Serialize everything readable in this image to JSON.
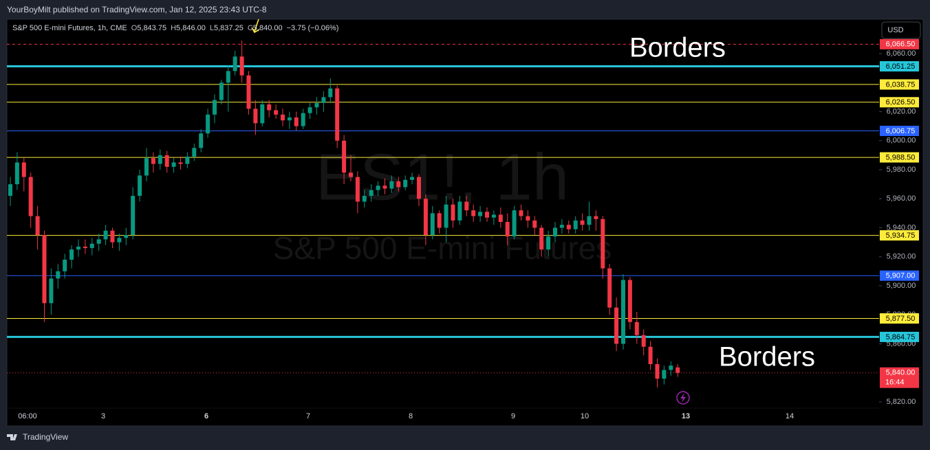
{
  "header": {
    "byline": "YourBoyMilt published on TradingView.com, Jan 12, 2025 23:43 UTC-8",
    "symbol": "S&P 500 E-mini Futures, 1h, CME",
    "ohlc": [
      {
        "key": "O",
        "value": "5,843.75"
      },
      {
        "key": "H",
        "value": "5,846.00"
      },
      {
        "key": "L",
        "value": "5,837.25"
      },
      {
        "key": "C",
        "value": "5,840.00"
      }
    ],
    "change": "−3.75 (−0.06%)",
    "currency": "USD"
  },
  "footer": {
    "brand": "TradingView"
  },
  "chart_data": {
    "type": "candlestick",
    "watermark": [
      "ES1!, 1h",
      "S&P 500 E-mini Futures"
    ],
    "annotations": [
      "Borders",
      "Borders"
    ],
    "up_color": "#089981",
    "down_color": "#f23645",
    "ylim": [
      5803.4,
      6083.7
    ],
    "yticks": [
      {
        "value": 5820,
        "label": "5,820.00"
      },
      {
        "value": 5860,
        "label": "5,860.00"
      },
      {
        "value": 5880,
        "label": "5,880.00"
      },
      {
        "value": 5900,
        "label": "5,900.00"
      },
      {
        "value": 5920,
        "label": "5,920.00"
      },
      {
        "value": 5940,
        "label": "5,940.00"
      },
      {
        "value": 5960,
        "label": "5,960.00"
      },
      {
        "value": 5980,
        "label": "5,980.00"
      },
      {
        "value": 6000,
        "label": "6,000.00"
      },
      {
        "value": 6020,
        "label": "6,020.00"
      },
      {
        "value": 6060,
        "label": "6,060.00"
      }
    ],
    "time_labels": [
      "06:00",
      "3",
      "6",
      "7",
      "8",
      "9",
      "10",
      "13",
      "14"
    ],
    "levels": [
      {
        "value": 6066.5,
        "label": "6,066.50",
        "color": "#f23645",
        "text_color": "#ffffff",
        "style": "dashed",
        "width": 1
      },
      {
        "value": 6051.25,
        "label": "6,051.25",
        "color": "#26c6da",
        "text_color": "#000000",
        "style": "solid",
        "width": 3
      },
      {
        "value": 6038.75,
        "label": "6,038.75",
        "color": "#ffeb3b",
        "text_color": "#000000",
        "style": "solid",
        "width": 1
      },
      {
        "value": 6026.5,
        "label": "6,026.50",
        "color": "#ffeb3b",
        "text_color": "#000000",
        "style": "solid",
        "width": 1
      },
      {
        "value": 6006.75,
        "label": "6,006.75",
        "color": "#2962ff",
        "text_color": "#ffffff",
        "style": "solid",
        "width": 1
      },
      {
        "value": 5988.5,
        "label": "5,988.50",
        "color": "#ffeb3b",
        "text_color": "#000000",
        "style": "solid",
        "width": 1
      },
      {
        "value": 5934.75,
        "label": "5,934.75",
        "color": "#ffeb3b",
        "text_color": "#000000",
        "style": "solid",
        "width": 1
      },
      {
        "value": 5907,
        "label": "5,907.00",
        "color": "#2962ff",
        "text_color": "#ffffff",
        "style": "solid",
        "width": 1
      },
      {
        "value": 5877.5,
        "label": "5,877.50",
        "color": "#ffeb3b",
        "text_color": "#000000",
        "style": "solid",
        "width": 1
      },
      {
        "value": 5864.75,
        "label": "5,864.75",
        "color": "#26c6da",
        "text_color": "#000000",
        "style": "solid",
        "width": 3
      }
    ],
    "last_price": {
      "value": 5840,
      "label": "5,840.00",
      "countdown": "16:44",
      "color": "#f23645"
    },
    "candles": [
      [
        5962,
        5975,
        5955,
        5970
      ],
      [
        5970,
        5992,
        5966,
        5985
      ],
      [
        5985,
        5988,
        5965,
        5975
      ],
      [
        5975,
        5978,
        5940,
        5948
      ],
      [
        5948,
        5955,
        5925,
        5935
      ],
      [
        5935,
        5938,
        5875,
        5888
      ],
      [
        5888,
        5912,
        5880,
        5905
      ],
      [
        5905,
        5915,
        5898,
        5910
      ],
      [
        5910,
        5922,
        5905,
        5918
      ],
      [
        5918,
        5928,
        5912,
        5925
      ],
      [
        5925,
        5932,
        5920,
        5927
      ],
      [
        5927,
        5932,
        5922,
        5926
      ],
      [
        5926,
        5933,
        5921,
        5929
      ],
      [
        5929,
        5936,
        5924,
        5932
      ],
      [
        5932,
        5942,
        5928,
        5938
      ],
      [
        5938,
        5940,
        5926,
        5930
      ],
      [
        5930,
        5936,
        5924,
        5933
      ],
      [
        5933,
        5940,
        5928,
        5935
      ],
      [
        5935,
        5968,
        5932,
        5962
      ],
      [
        5962,
        5980,
        5958,
        5976
      ],
      [
        5976,
        5995,
        5972,
        5988
      ],
      [
        5988,
        5992,
        5978,
        5984
      ],
      [
        5984,
        5994,
        5980,
        5990
      ],
      [
        5990,
        5993,
        5978,
        5982
      ],
      [
        5982,
        5988,
        5978,
        5985
      ],
      [
        5985,
        5989,
        5980,
        5984
      ],
      [
        5984,
        5992,
        5981,
        5989
      ],
      [
        5989,
        5998,
        5986,
        5995
      ],
      [
        5995,
        6008,
        5992,
        6005
      ],
      [
        6005,
        6022,
        6002,
        6018
      ],
      [
        6018,
        6032,
        6012,
        6028
      ],
      [
        6028,
        6042,
        6025,
        6040
      ],
      [
        6040,
        6052,
        6020,
        6048
      ],
      [
        6048,
        6062,
        6045,
        6058
      ],
      [
        6058,
        6069,
        6040,
        6045
      ],
      [
        6045,
        6048,
        6018,
        6022
      ],
      [
        6022,
        6028,
        6004,
        6012
      ],
      [
        6012,
        6028,
        6010,
        6025
      ],
      [
        6025,
        6028,
        6016,
        6021
      ],
      [
        6021,
        6025,
        6015,
        6018
      ],
      [
        6018,
        6022,
        6010,
        6014
      ],
      [
        6014,
        6020,
        6008,
        6016
      ],
      [
        6016,
        6020,
        6007,
        6010
      ],
      [
        6010,
        6022,
        6008,
        6019
      ],
      [
        6019,
        6026,
        6015,
        6023
      ],
      [
        6023,
        6030,
        6018,
        6026
      ],
      [
        6026,
        6034,
        6020,
        6030
      ],
      [
        6030,
        6043,
        6026,
        6036
      ],
      [
        6036,
        6038,
        5995,
        6000
      ],
      [
        6000,
        6004,
        5970,
        5978
      ],
      [
        5978,
        5990,
        5972,
        5975
      ],
      [
        5975,
        5979,
        5950,
        5958
      ],
      [
        5958,
        5966,
        5954,
        5962
      ],
      [
        5962,
        5970,
        5958,
        5966
      ],
      [
        5966,
        5972,
        5962,
        5969
      ],
      [
        5969,
        5974,
        5963,
        5967
      ],
      [
        5967,
        5976,
        5964,
        5972
      ],
      [
        5972,
        5975,
        5965,
        5968
      ],
      [
        5968,
        5976,
        5966,
        5973
      ],
      [
        5973,
        5978,
        5970,
        5975
      ],
      [
        5975,
        5977,
        5955,
        5960
      ],
      [
        5960,
        5963,
        5928,
        5935
      ],
      [
        5935,
        5955,
        5932,
        5950
      ],
      [
        5950,
        5952,
        5936,
        5940
      ],
      [
        5940,
        5962,
        5930,
        5956
      ],
      [
        5956,
        5960,
        5940,
        5945
      ],
      [
        5945,
        5962,
        5942,
        5958
      ],
      [
        5958,
        5962,
        5948,
        5952
      ],
      [
        5952,
        5956,
        5944,
        5948
      ],
      [
        5948,
        5955,
        5944,
        5951
      ],
      [
        5951,
        5954,
        5944,
        5947
      ],
      [
        5947,
        5952,
        5942,
        5949
      ],
      [
        5949,
        5954,
        5940,
        5944
      ],
      [
        5944,
        5950,
        5928,
        5934
      ],
      [
        5934,
        5955,
        5932,
        5952
      ],
      [
        5952,
        5956,
        5945,
        5948
      ],
      [
        5948,
        5952,
        5940,
        5945
      ],
      [
        5945,
        5948,
        5935,
        5940
      ],
      [
        5940,
        5942,
        5920,
        5925
      ],
      [
        5925,
        5938,
        5920,
        5934
      ],
      [
        5934,
        5944,
        5930,
        5940
      ],
      [
        5940,
        5946,
        5936,
        5942
      ],
      [
        5942,
        5945,
        5936,
        5939
      ],
      [
        5939,
        5948,
        5936,
        5945
      ],
      [
        5945,
        5950,
        5938,
        5942
      ],
      [
        5942,
        5958,
        5938,
        5948
      ],
      [
        5948,
        5952,
        5938,
        5946
      ],
      [
        5946,
        5948,
        5905,
        5912
      ],
      [
        5912,
        5915,
        5880,
        5885
      ],
      [
        5885,
        5892,
        5855,
        5860
      ],
      [
        5860,
        5908,
        5856,
        5904
      ],
      [
        5904,
        5906,
        5870,
        5875
      ],
      [
        5875,
        5882,
        5860,
        5866
      ],
      [
        5866,
        5870,
        5852,
        5858
      ],
      [
        5858,
        5862,
        5842,
        5846
      ],
      [
        5846,
        5850,
        5830,
        5836
      ],
      [
        5836,
        5845,
        5832,
        5842
      ],
      [
        5842,
        5848,
        5838,
        5845
      ],
      [
        5843.75,
        5846,
        5837.25,
        5840
      ]
    ]
  }
}
